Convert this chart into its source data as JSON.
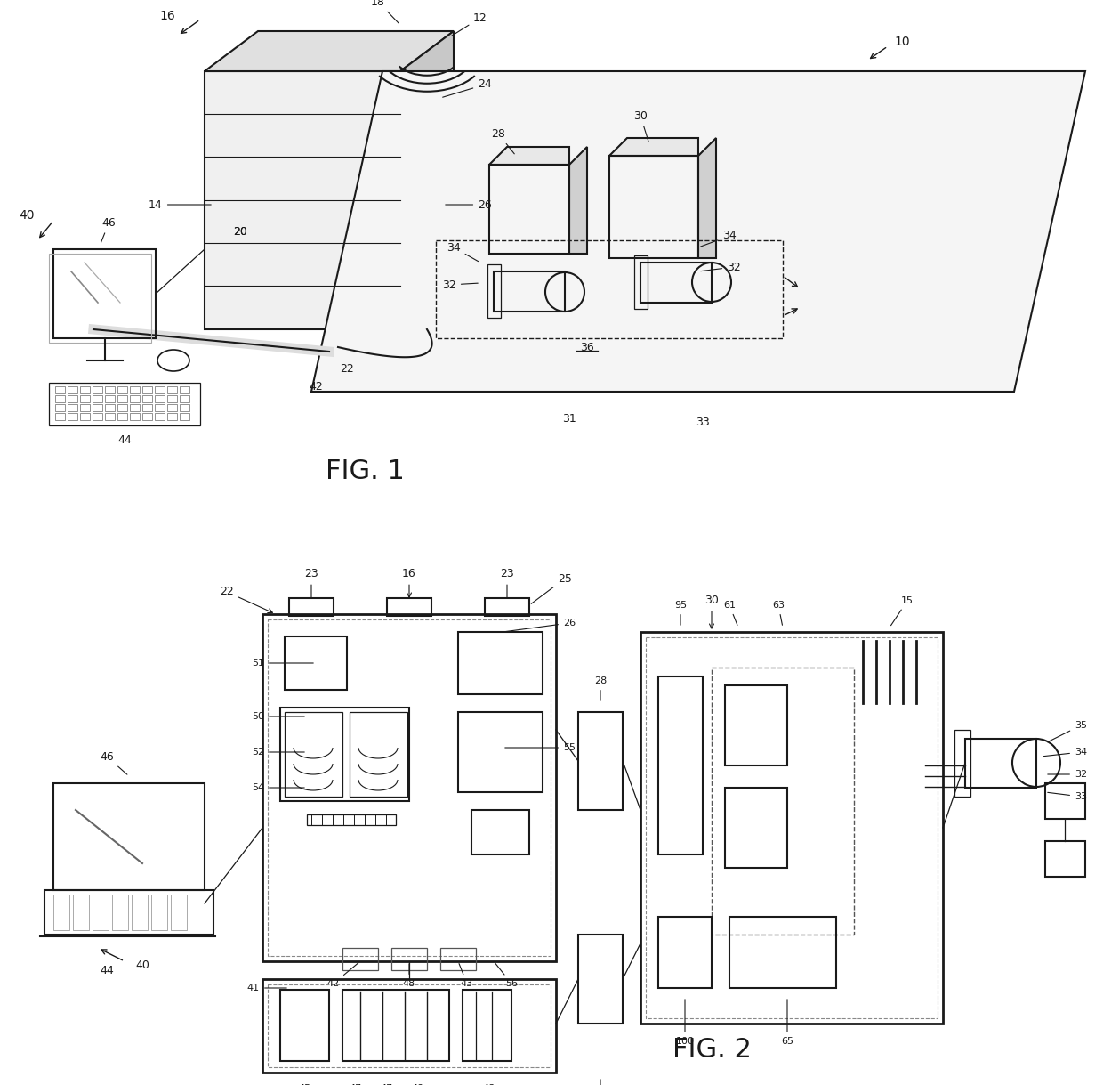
{
  "fig_width": 12.4,
  "fig_height": 12.19,
  "dpi": 100,
  "bg_color": "#ffffff",
  "lc": "#1a1a1a",
  "lw_thin": 0.9,
  "lw_med": 1.5,
  "lw_thick": 2.0
}
